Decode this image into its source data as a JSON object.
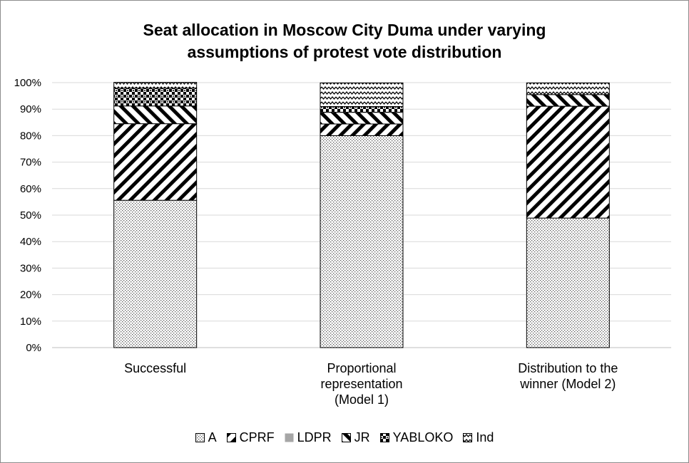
{
  "chart_data": {
    "type": "bar",
    "stacked": true,
    "percent": true,
    "title": "Seat allocation in Moscow City Duma under varying\nassumptions of protest vote distribution",
    "xlabel": "",
    "ylabel": "",
    "ylim": [
      0,
      100
    ],
    "yticks": [
      "0%",
      "10%",
      "20%",
      "30%",
      "40%",
      "50%",
      "60%",
      "70%",
      "80%",
      "90%",
      "100%"
    ],
    "grid": true,
    "legend_position": "bottom",
    "categories": [
      "Successful",
      "Proportional\nrepresentation\n(Model 1)",
      "Distribution to the\nwinner  (Model 2)"
    ],
    "series": [
      {
        "name": "A",
        "pattern": "dots",
        "values": [
          55.6,
          80.0,
          48.9
        ]
      },
      {
        "name": "CPRF",
        "pattern": "diagonal-down",
        "values": [
          28.9,
          4.4,
          42.2
        ]
      },
      {
        "name": "LDPR",
        "pattern": "solid-gray",
        "color": "#a6a6a6",
        "values": [
          0,
          0,
          0
        ]
      },
      {
        "name": "JR",
        "pattern": "diagonal-up",
        "values": [
          6.7,
          4.4,
          4.4
        ]
      },
      {
        "name": "YABLOKO",
        "pattern": "checker",
        "values": [
          6.7,
          2.2,
          0
        ]
      },
      {
        "name": "Ind",
        "pattern": "waves",
        "values": [
          2.2,
          8.9,
          4.4
        ]
      }
    ]
  }
}
